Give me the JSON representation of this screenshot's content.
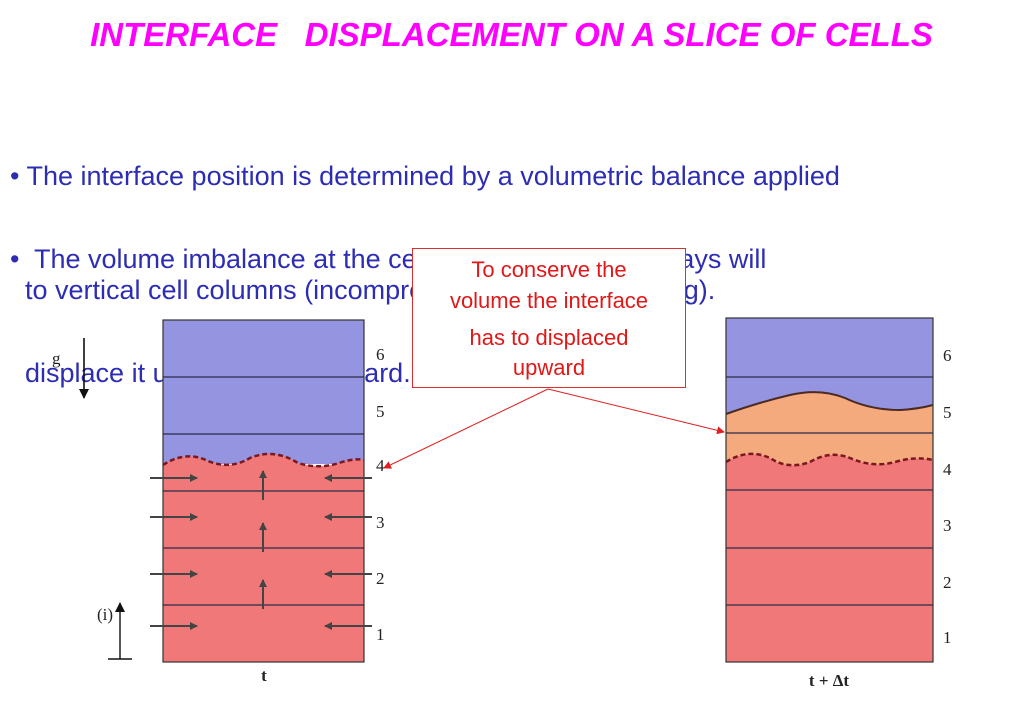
{
  "title": "INTERFACE   DISPLACEMENT ON A SLICE OF CELLS",
  "bullets": [
    {
      "lines": [
        "• The interface position is determined by a volumetric balance applied",
        "  to vertical cell columns (incompressible & no overturning)."
      ]
    },
    {
      "lines": [
        "•  The volume imbalance at the cell where the interface lays will",
        "  displace it upward or downward."
      ]
    }
  ],
  "callout": {
    "lines": [
      "To conserve the",
      "volume the interface",
      "has to displaced",
      "upward"
    ]
  },
  "diagram": {
    "gravity_label": "g",
    "index_label": "(i)",
    "left_time_label": "t",
    "right_time_label": "t + Δt",
    "cell_numbers": [
      "1",
      "2",
      "3",
      "4",
      "5",
      "6"
    ],
    "colors": {
      "upper_fluid": "#9494e0",
      "lower_fluid": "#f07878",
      "displaced_fluid": "#f4aa7c",
      "callout_text": "#e01818",
      "title": "#ff00ff",
      "body_text": "#2d2db4"
    }
  }
}
